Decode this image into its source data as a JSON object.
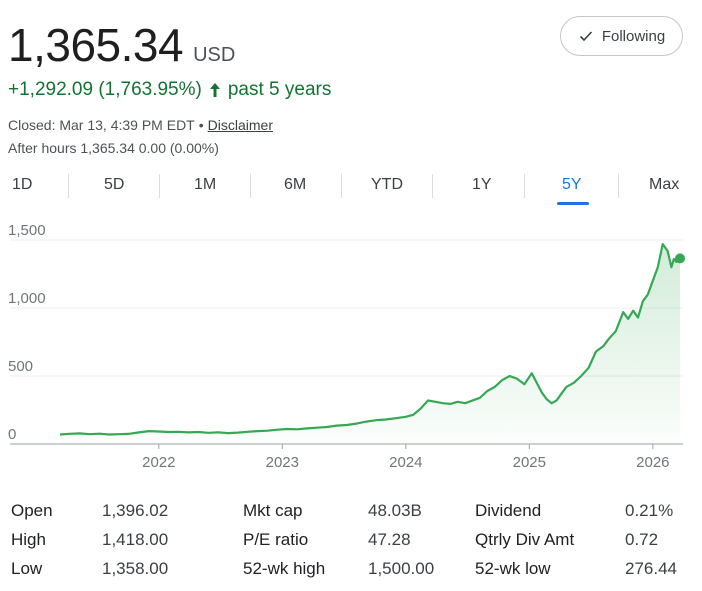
{
  "quote": {
    "price": "1,365.34",
    "currency": "USD",
    "change": "+1,292.09 (1,763.95%)",
    "period": "past 5 years",
    "closed_text": "Closed: Mar 13, 4:39 PM EDT",
    "dot": "•",
    "disclaimer": "Disclaimer",
    "after_hours": "After hours 1,365.34 0.00 (0.00%)",
    "follow_label": "Following",
    "colors": {
      "up": "#137333",
      "line": "#34a853",
      "accent": "#1a73e8"
    }
  },
  "tabs": [
    {
      "label": "1D"
    },
    {
      "label": "5D"
    },
    {
      "label": "1M"
    },
    {
      "label": "6M"
    },
    {
      "label": "YTD"
    },
    {
      "label": "1Y"
    },
    {
      "label": "5Y",
      "active": true
    },
    {
      "label": "Max"
    }
  ],
  "chart_data": {
    "type": "area",
    "y_ticks": [
      "0",
      "500",
      "1,000",
      "1,500"
    ],
    "x_ticks": [
      "2022",
      "2023",
      "2024",
      "2025",
      "2026"
    ],
    "ylim": [
      0,
      1500
    ],
    "xlim": [
      2021.2,
      2026.22
    ],
    "x": [
      2021.2,
      2021.28,
      2021.36,
      2021.44,
      2021.52,
      2021.6,
      2021.68,
      2021.76,
      2021.84,
      2021.92,
      2022.0,
      2022.08,
      2022.16,
      2022.24,
      2022.32,
      2022.4,
      2022.48,
      2022.56,
      2022.64,
      2022.72,
      2022.8,
      2022.88,
      2022.96,
      2023.04,
      2023.12,
      2023.2,
      2023.28,
      2023.36,
      2023.44,
      2023.52,
      2023.6,
      2023.68,
      2023.76,
      2023.84,
      2023.92,
      2024.0,
      2024.06,
      2024.12,
      2024.18,
      2024.24,
      2024.3,
      2024.36,
      2024.42,
      2024.48,
      2024.54,
      2024.6,
      2024.66,
      2024.72,
      2024.78,
      2024.84,
      2024.9,
      2024.96,
      2025.02,
      2025.06,
      2025.1,
      2025.14,
      2025.18,
      2025.22,
      2025.26,
      2025.3,
      2025.36,
      2025.42,
      2025.48,
      2025.54,
      2025.6,
      2025.64,
      2025.7,
      2025.76,
      2025.8,
      2025.84,
      2025.88,
      2025.92,
      2025.96,
      2026.0,
      2026.04,
      2026.08,
      2026.12,
      2026.15,
      2026.17,
      2026.19,
      2026.22
    ],
    "y": [
      70,
      75,
      78,
      72,
      76,
      70,
      72,
      75,
      85,
      95,
      92,
      88,
      90,
      85,
      88,
      82,
      86,
      80,
      84,
      90,
      95,
      98,
      105,
      110,
      108,
      115,
      120,
      125,
      135,
      140,
      150,
      165,
      175,
      180,
      190,
      200,
      215,
      260,
      320,
      310,
      300,
      295,
      310,
      300,
      320,
      340,
      390,
      420,
      470,
      500,
      480,
      440,
      520,
      450,
      380,
      330,
      300,
      320,
      370,
      420,
      450,
      500,
      560,
      680,
      720,
      770,
      830,
      970,
      920,
      980,
      930,
      1050,
      1100,
      1200,
      1300,
      1470,
      1420,
      1300,
      1360,
      1340,
      1365
    ],
    "end_point": [
      2026.22,
      1365
    ]
  },
  "stats": [
    [
      {
        "label": "Open",
        "value": "1,396.02"
      },
      {
        "label": "Mkt cap",
        "value": "48.03B"
      },
      {
        "label": "Dividend",
        "value": "0.21%"
      }
    ],
    [
      {
        "label": "High",
        "value": "1,418.00"
      },
      {
        "label": "P/E ratio",
        "value": "47.28"
      },
      {
        "label": "Qtrly Div Amt",
        "value": "0.72"
      }
    ],
    [
      {
        "label": "Low",
        "value": "1,358.00"
      },
      {
        "label": "52-wk high",
        "value": "1,500.00"
      },
      {
        "label": "52-wk low",
        "value": "276.44"
      }
    ]
  ]
}
